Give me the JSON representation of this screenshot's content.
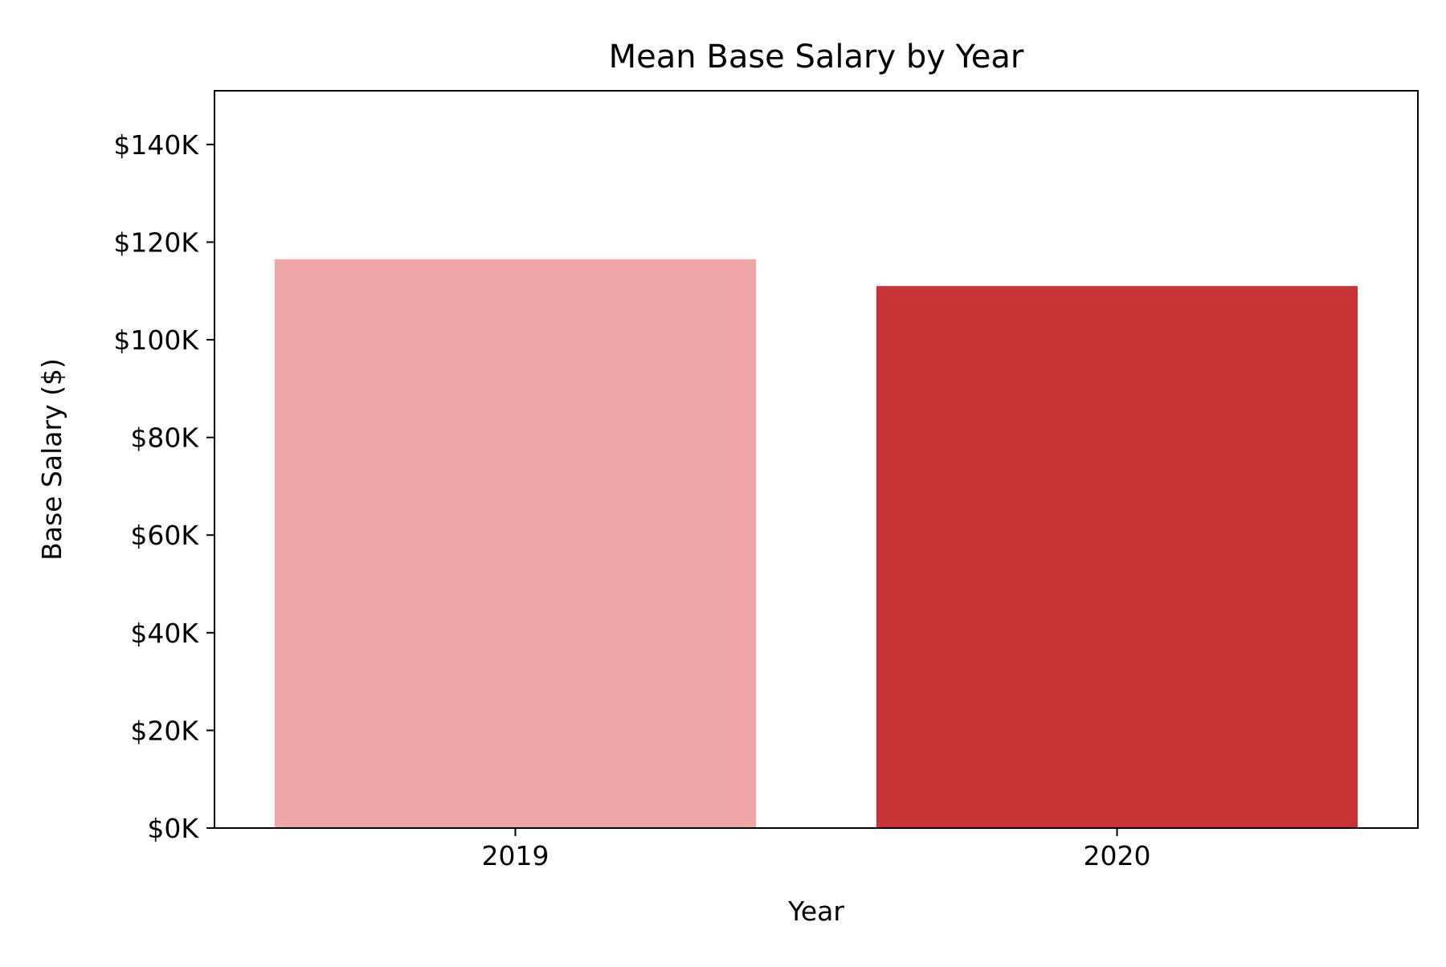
{
  "chart_data": {
    "type": "bar",
    "title": "Mean Base Salary by Year",
    "xlabel": "Year",
    "ylabel": "Base Salary ($)",
    "categories": [
      "2019",
      "2020"
    ],
    "values": [
      116500,
      111000
    ],
    "bar_colors": [
      "#f0a6a6",
      "#c83336"
    ],
    "ylim": [
      0,
      151000
    ],
    "yticks": [
      0,
      20000,
      40000,
      60000,
      80000,
      100000,
      120000,
      140000
    ],
    "ytick_labels": [
      "$0K",
      "$20K",
      "$40K",
      "$60K",
      "$80K",
      "$100K",
      "$120K",
      "$140K"
    ],
    "grid": false,
    "legend": "none"
  }
}
